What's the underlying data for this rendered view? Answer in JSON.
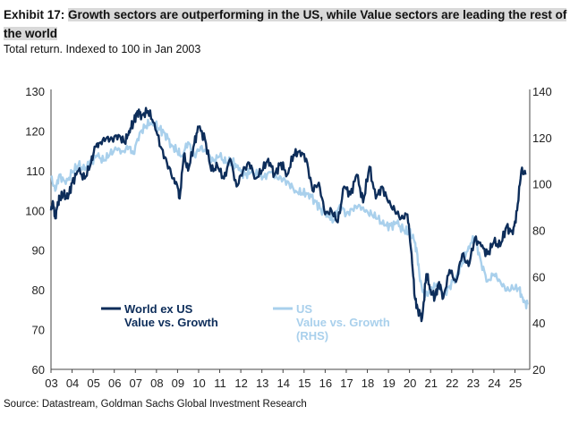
{
  "header": {
    "label": "Exhibit 17:",
    "title": "Growth sectors are outperforming in the US, while Value sectors are leading the rest of the world",
    "subtitle": "Total return. Indexed to 100 in Jan 2003"
  },
  "footer": {
    "source": "Source: Datastream, Goldman Sachs Global Investment Research"
  },
  "colors": {
    "world": "#0d2d5a",
    "us": "#a9d0ec",
    "axis": "#444444"
  },
  "chart_data": {
    "type": "line",
    "x_ticks": [
      "03",
      "04",
      "05",
      "06",
      "07",
      "08",
      "09",
      "10",
      "11",
      "12",
      "13",
      "14",
      "15",
      "16",
      "17",
      "18",
      "19",
      "20",
      "21",
      "22",
      "23",
      "24",
      "25"
    ],
    "xlim": [
      2003.0,
      2025.7
    ],
    "ylim_left": [
      60,
      130
    ],
    "yticks_left": [
      "60",
      "70",
      "80",
      "90",
      "100",
      "110",
      "120",
      "130"
    ],
    "ylim_right": [
      20,
      140
    ],
    "yticks_right": [
      "20",
      "40",
      "60",
      "80",
      "100",
      "120",
      "140"
    ],
    "grid": false,
    "series": [
      {
        "name_lines": [
          "World ex US",
          "Value vs. Growth"
        ],
        "axis": "left",
        "x": [
          2003.0,
          2003.1,
          2003.2,
          2003.3,
          2003.4,
          2003.6,
          2003.8,
          2004.0,
          2004.3,
          2004.6,
          2004.9,
          2005.1,
          2005.3,
          2005.6,
          2005.9,
          2006.2,
          2006.5,
          2006.7,
          2006.9,
          2007.1,
          2007.3,
          2007.6,
          2007.9,
          2008.2,
          2008.5,
          2008.8,
          2009.0,
          2009.1,
          2009.3,
          2009.5,
          2009.8,
          2010.0,
          2010.3,
          2010.6,
          2010.9,
          2011.2,
          2011.5,
          2011.8,
          2012.1,
          2012.4,
          2012.7,
          2013.0,
          2013.3,
          2013.6,
          2013.9,
          2014.2,
          2014.5,
          2014.8,
          2015.1,
          2015.4,
          2015.7,
          2016.0,
          2016.3,
          2016.6,
          2016.9,
          2017.2,
          2017.5,
          2017.8,
          2018.1,
          2018.4,
          2018.7,
          2019.0,
          2019.3,
          2019.6,
          2019.9,
          2020.1,
          2020.25,
          2020.4,
          2020.6,
          2020.8,
          2021.0,
          2021.2,
          2021.4,
          2021.6,
          2021.9,
          2022.2,
          2022.5,
          2022.8,
          2023.1,
          2023.4,
          2023.7,
          2024.0,
          2024.3,
          2024.6,
          2024.9,
          2025.1,
          2025.3,
          2025.5
        ],
        "y": [
          100,
          102,
          98,
          101,
          103,
          104,
          103,
          107,
          110,
          108,
          112,
          116,
          117,
          118,
          118,
          119,
          117,
          120,
          122,
          125,
          124,
          125,
          122,
          116,
          112,
          108,
          106,
          103,
          114,
          110,
          117,
          121,
          118,
          110,
          111,
          108,
          113,
          106,
          110,
          112,
          108,
          110,
          113,
          109,
          112,
          109,
          114,
          115,
          113,
          105,
          107,
          99,
          100,
          97,
          106,
          104,
          109,
          102,
          111,
          103,
          106,
          102,
          100,
          98,
          99,
          89,
          78,
          75,
          73,
          84,
          80,
          78,
          82,
          78,
          85,
          82,
          89,
          86,
          93,
          91,
          89,
          92,
          91,
          96,
          94,
          100,
          110,
          109
        ]
      },
      {
        "name_lines": [
          "US",
          "Value vs. Growth",
          "(RHS)"
        ],
        "axis": "right",
        "x": [
          2003.0,
          2003.2,
          2003.4,
          2003.7,
          2004.0,
          2004.3,
          2004.6,
          2004.9,
          2005.2,
          2005.5,
          2005.8,
          2006.1,
          2006.4,
          2006.7,
          2006.9,
          2007.2,
          2007.5,
          2007.8,
          2008.1,
          2008.4,
          2008.7,
          2009.0,
          2009.2,
          2009.5,
          2009.8,
          2010.1,
          2010.4,
          2010.7,
          2011.0,
          2011.3,
          2011.6,
          2011.9,
          2012.2,
          2012.5,
          2012.8,
          2013.1,
          2013.4,
          2013.7,
          2014.0,
          2014.3,
          2014.6,
          2014.9,
          2015.2,
          2015.5,
          2015.8,
          2016.1,
          2016.4,
          2016.7,
          2017.0,
          2017.3,
          2017.6,
          2017.9,
          2018.2,
          2018.5,
          2018.8,
          2019.1,
          2019.4,
          2019.7,
          2020.0,
          2020.2,
          2020.35,
          2020.5,
          2020.7,
          2020.9,
          2021.1,
          2021.3,
          2021.6,
          2021.9,
          2022.2,
          2022.5,
          2022.8,
          2023.1,
          2023.4,
          2023.7,
          2024.0,
          2024.3,
          2024.6,
          2024.9,
          2025.2,
          2025.4,
          2025.6
        ],
        "y": [
          103,
          97,
          104,
          100,
          105,
          108,
          106,
          110,
          112,
          110,
          113,
          115,
          114,
          116,
          113,
          122,
          125,
          127,
          124,
          122,
          117,
          114,
          112,
          118,
          112,
          116,
          113,
          110,
          112,
          109,
          110,
          106,
          104,
          105,
          104,
          103,
          105,
          103,
          102,
          100,
          97,
          96,
          96,
          93,
          89,
          87,
          84,
          91,
          87,
          89,
          91,
          88,
          87,
          85,
          82,
          82,
          83,
          80,
          79,
          76,
          71,
          58,
          52,
          53,
          55,
          57,
          52,
          56,
          60,
          66,
          73,
          77,
          66,
          58,
          61,
          58,
          54,
          55,
          55,
          49,
          48
        ]
      }
    ]
  }
}
